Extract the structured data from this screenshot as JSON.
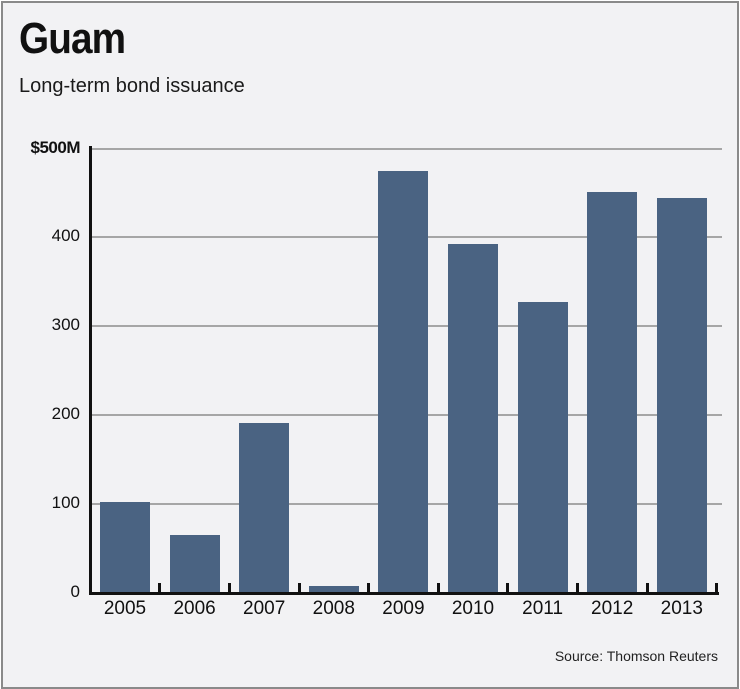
{
  "header": {
    "title": "Guam",
    "subtitle": "Long-term bond issuance"
  },
  "footer": {
    "source": "Source: Thomson Reuters"
  },
  "colors": {
    "bar": "#4a6382",
    "background": "#f2f2f4",
    "grid": "#a6a6a6"
  },
  "chart_data": {
    "type": "bar",
    "title": "Guam",
    "subtitle": "Long-term bond issuance",
    "xlabel": "",
    "ylabel": "",
    "categories": [
      "2005",
      "2006",
      "2007",
      "2008",
      "2009",
      "2010",
      "2011",
      "2012",
      "2013"
    ],
    "values": [
      102,
      65,
      191,
      8,
      475,
      393,
      327,
      451,
      444
    ],
    "unit": "$M",
    "ylim": [
      0,
      500
    ],
    "yticks": [
      0,
      100,
      200,
      300,
      400,
      500
    ],
    "ytick_labels": [
      "0",
      "100",
      "200",
      "300",
      "400",
      "$500M"
    ],
    "grid": true,
    "legend": null,
    "source": "Source: Thomson Reuters"
  }
}
